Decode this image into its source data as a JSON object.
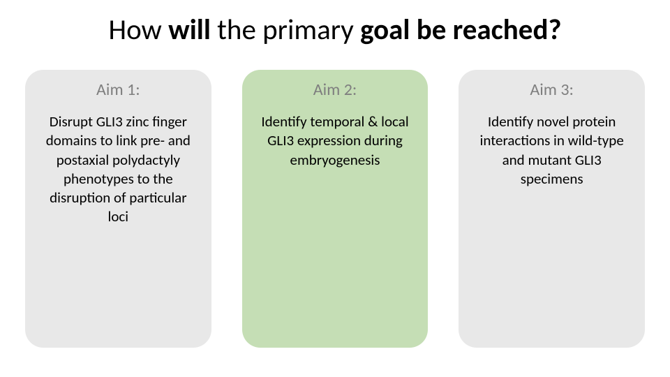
{
  "title": {
    "lead": "How ",
    "bold1": "will",
    "mid": " the primary ",
    "bold2": "goal be reached?"
  },
  "cards": [
    {
      "heading": "Aim 1:",
      "body": "Disrupt GLI3 zinc finger domains to link pre- and postaxial polydactyly phenotypes to the disruption of particular loci",
      "bg": "#e8e8e8"
    },
    {
      "heading": "Aim 2:",
      "body": "Identify temporal & local GLI3 expression during embryogenesis",
      "bg": "#c5deb5"
    },
    {
      "heading": "Aim 3:",
      "body": "Identify novel protein interactions in wild-type and mutant GLI3 specimens",
      "bg": "#e8e8e8"
    }
  ],
  "style": {
    "title_fontsize": 41,
    "heading_fontsize": 24,
    "body_fontsize": 21,
    "heading_color": "#7f7f7f",
    "body_color": "#000000",
    "card_radius": 26,
    "card_gap": 44,
    "background": "#ffffff"
  }
}
